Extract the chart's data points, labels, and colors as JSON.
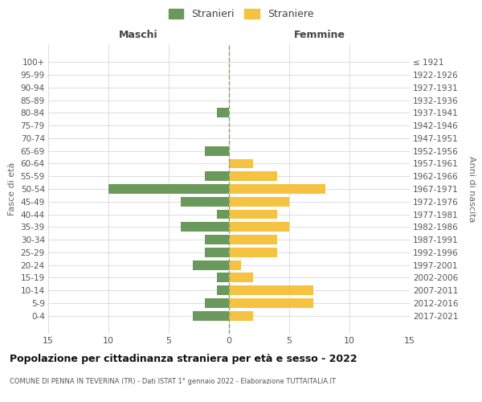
{
  "age_groups": [
    "100+",
    "95-99",
    "90-94",
    "85-89",
    "80-84",
    "75-79",
    "70-74",
    "65-69",
    "60-64",
    "55-59",
    "50-54",
    "45-49",
    "40-44",
    "35-39",
    "30-34",
    "25-29",
    "20-24",
    "15-19",
    "10-14",
    "5-9",
    "0-4"
  ],
  "birth_years": [
    "≤ 1921",
    "1922-1926",
    "1927-1931",
    "1932-1936",
    "1937-1941",
    "1942-1946",
    "1947-1951",
    "1952-1956",
    "1957-1961",
    "1962-1966",
    "1967-1971",
    "1972-1976",
    "1977-1981",
    "1982-1986",
    "1987-1991",
    "1992-1996",
    "1997-2001",
    "2002-2006",
    "2007-2011",
    "2012-2016",
    "2017-2021"
  ],
  "maschi": [
    0,
    0,
    0,
    0,
    1,
    0,
    0,
    2,
    0,
    2,
    10,
    4,
    1,
    4,
    2,
    2,
    3,
    1,
    1,
    2,
    3
  ],
  "femmine": [
    0,
    0,
    0,
    0,
    0,
    0,
    0,
    0,
    2,
    4,
    8,
    5,
    4,
    5,
    4,
    4,
    1,
    2,
    7,
    7,
    2
  ],
  "color_maschi": "#6a9a5b",
  "color_femmine": "#f5c242",
  "title": "Popolazione per cittadinanza straniera per età e sesso - 2022",
  "subtitle": "COMUNE DI PENNA IN TEVERINA (TR) - Dati ISTAT 1° gennaio 2022 - Elaborazione TUTTAITALIA.IT",
  "xlabel_left": "Maschi",
  "xlabel_right": "Femmine",
  "ylabel_left": "Fasce di età",
  "ylabel_right": "Anni di nascita",
  "xlim": 15,
  "legend_stranieri": "Stranieri",
  "legend_straniere": "Straniere",
  "background_color": "#ffffff",
  "grid_color": "#d0d0d0"
}
